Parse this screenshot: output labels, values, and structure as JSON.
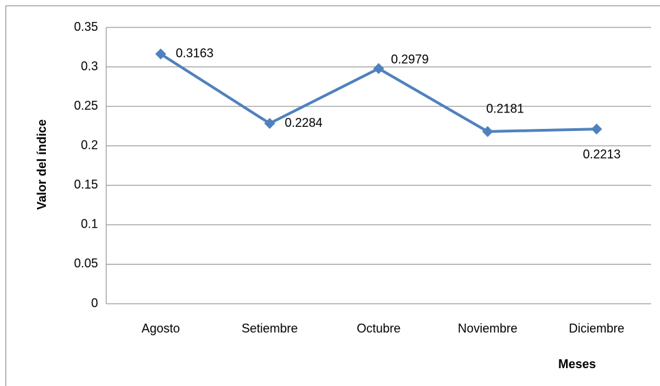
{
  "chart_data": {
    "type": "line",
    "x_label": "Meses",
    "y_label": "Valor del índice",
    "categories": [
      "Agosto",
      "Setiembre",
      "Octubre",
      "Noviembre",
      "Diciembre"
    ],
    "values": [
      0.3163,
      0.2284,
      0.2979,
      0.2181,
      0.2213
    ],
    "color": "#4f81bd",
    "ylim": [
      0,
      0.35
    ],
    "yticks": [
      0,
      0.05,
      0.1,
      0.15,
      0.2,
      0.25,
      0.3,
      0.35
    ],
    "grid": true
  }
}
